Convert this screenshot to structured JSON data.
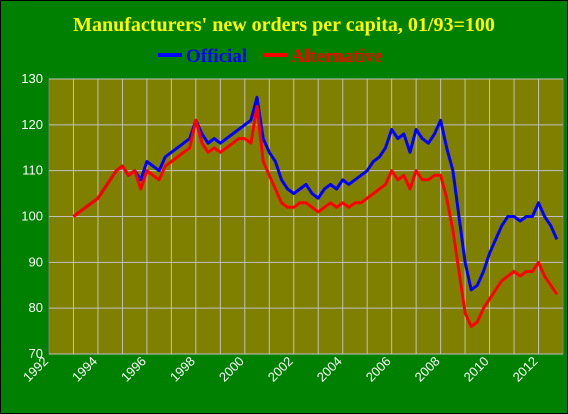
{
  "chart_data": {
    "type": "line",
    "title": "Manufacturers' new orders per capita, 01/93=100",
    "xlabel": "",
    "ylabel": "",
    "xlim": [
      1992,
      2013
    ],
    "ylim": [
      70,
      130
    ],
    "x_ticks": [
      1992,
      1994,
      1996,
      1998,
      2000,
      2002,
      2004,
      2006,
      2008,
      2010,
      2012
    ],
    "x_tick_labels": [
      "1992",
      "1994",
      "1996",
      "1998",
      "2000",
      "2002",
      "2004",
      "2006",
      "2008",
      "2010",
      "2012"
    ],
    "y_ticks": [
      70,
      80,
      90,
      100,
      110,
      120,
      130
    ],
    "y_tick_labels": [
      "70",
      "80",
      "90",
      "100",
      "110",
      "120",
      "130"
    ],
    "grid": true,
    "legend_position": "top",
    "background_color": "#008000",
    "plot_color": "#808000",
    "grid_color": "#C0C0C0",
    "title_color": "#FFFF00",
    "series": [
      {
        "name": "Official",
        "color": "#0000FF",
        "x": [
          1993.0,
          1993.25,
          1993.5,
          1993.75,
          1994.0,
          1994.25,
          1994.5,
          1994.75,
          1995.0,
          1995.25,
          1995.5,
          1995.75,
          1996.0,
          1996.25,
          1996.5,
          1996.75,
          1997.0,
          1997.25,
          1997.5,
          1997.75,
          1998.0,
          1998.25,
          1998.5,
          1998.75,
          1999.0,
          1999.25,
          1999.5,
          1999.75,
          2000.0,
          2000.25,
          2000.5,
          2000.75,
          2001.0,
          2001.25,
          2001.5,
          2001.75,
          2002.0,
          2002.25,
          2002.5,
          2002.75,
          2003.0,
          2003.25,
          2003.5,
          2003.75,
          2004.0,
          2004.25,
          2004.5,
          2004.75,
          2005.0,
          2005.25,
          2005.5,
          2005.75,
          2006.0,
          2006.25,
          2006.5,
          2006.75,
          2007.0,
          2007.25,
          2007.5,
          2007.75,
          2008.0,
          2008.25,
          2008.5,
          2008.75,
          2009.0,
          2009.25,
          2009.5,
          2009.75,
          2010.0,
          2010.25,
          2010.5,
          2010.75,
          2011.0,
          2011.25,
          2011.5,
          2011.75,
          2012.0,
          2012.25,
          2012.5,
          2012.75
        ],
        "values": [
          100,
          101,
          102,
          103,
          104,
          106,
          108,
          110,
          111,
          109,
          110,
          108,
          112,
          111,
          110,
          113,
          114,
          115,
          116,
          117,
          121,
          118,
          116,
          117,
          116,
          117,
          118,
          119,
          120,
          121,
          126,
          117,
          114,
          112,
          108,
          106,
          105,
          106,
          107,
          105,
          104,
          106,
          107,
          106,
          108,
          107,
          108,
          109,
          110,
          112,
          113,
          115,
          119,
          117,
          118,
          114,
          119,
          117,
          116,
          118,
          121,
          115,
          110,
          100,
          90,
          84,
          85,
          88,
          92,
          95,
          98,
          100,
          100,
          99,
          100,
          100,
          103,
          100,
          98,
          95
        ]
      },
      {
        "name": "Alternative",
        "color": "#FF0000",
        "x": [
          1993.0,
          1993.25,
          1993.5,
          1993.75,
          1994.0,
          1994.25,
          1994.5,
          1994.75,
          1995.0,
          1995.25,
          1995.5,
          1995.75,
          1996.0,
          1996.25,
          1996.5,
          1996.75,
          1997.0,
          1997.25,
          1997.5,
          1997.75,
          1998.0,
          1998.25,
          1998.5,
          1998.75,
          1999.0,
          1999.25,
          1999.5,
          1999.75,
          2000.0,
          2000.25,
          2000.5,
          2000.75,
          2001.0,
          2001.25,
          2001.5,
          2001.75,
          2002.0,
          2002.25,
          2002.5,
          2002.75,
          2003.0,
          2003.25,
          2003.5,
          2003.75,
          2004.0,
          2004.25,
          2004.5,
          2004.75,
          2005.0,
          2005.25,
          2005.5,
          2005.75,
          2006.0,
          2006.25,
          2006.5,
          2006.75,
          2007.0,
          2007.25,
          2007.5,
          2007.75,
          2008.0,
          2008.25,
          2008.5,
          2008.75,
          2009.0,
          2009.25,
          2009.5,
          2009.75,
          2010.0,
          2010.25,
          2010.5,
          2010.75,
          2011.0,
          2011.25,
          2011.5,
          2011.75,
          2012.0,
          2012.25,
          2012.5,
          2012.75
        ],
        "values": [
          100,
          101,
          102,
          103,
          104,
          106,
          108,
          110,
          111,
          109,
          110,
          106,
          110,
          109,
          108,
          111,
          112,
          113,
          114,
          115,
          121,
          116,
          114,
          115,
          114,
          115,
          116,
          117,
          117,
          116,
          124,
          112,
          109,
          106,
          103,
          102,
          102,
          103,
          103,
          102,
          101,
          102,
          103,
          102,
          103,
          102,
          103,
          103,
          104,
          105,
          106,
          107,
          110,
          108,
          109,
          106,
          110,
          108,
          108,
          109,
          109,
          104,
          97,
          88,
          79,
          76,
          77,
          80,
          82,
          84,
          86,
          87,
          88,
          87,
          88,
          88,
          90,
          87,
          85,
          83
        ]
      }
    ]
  }
}
